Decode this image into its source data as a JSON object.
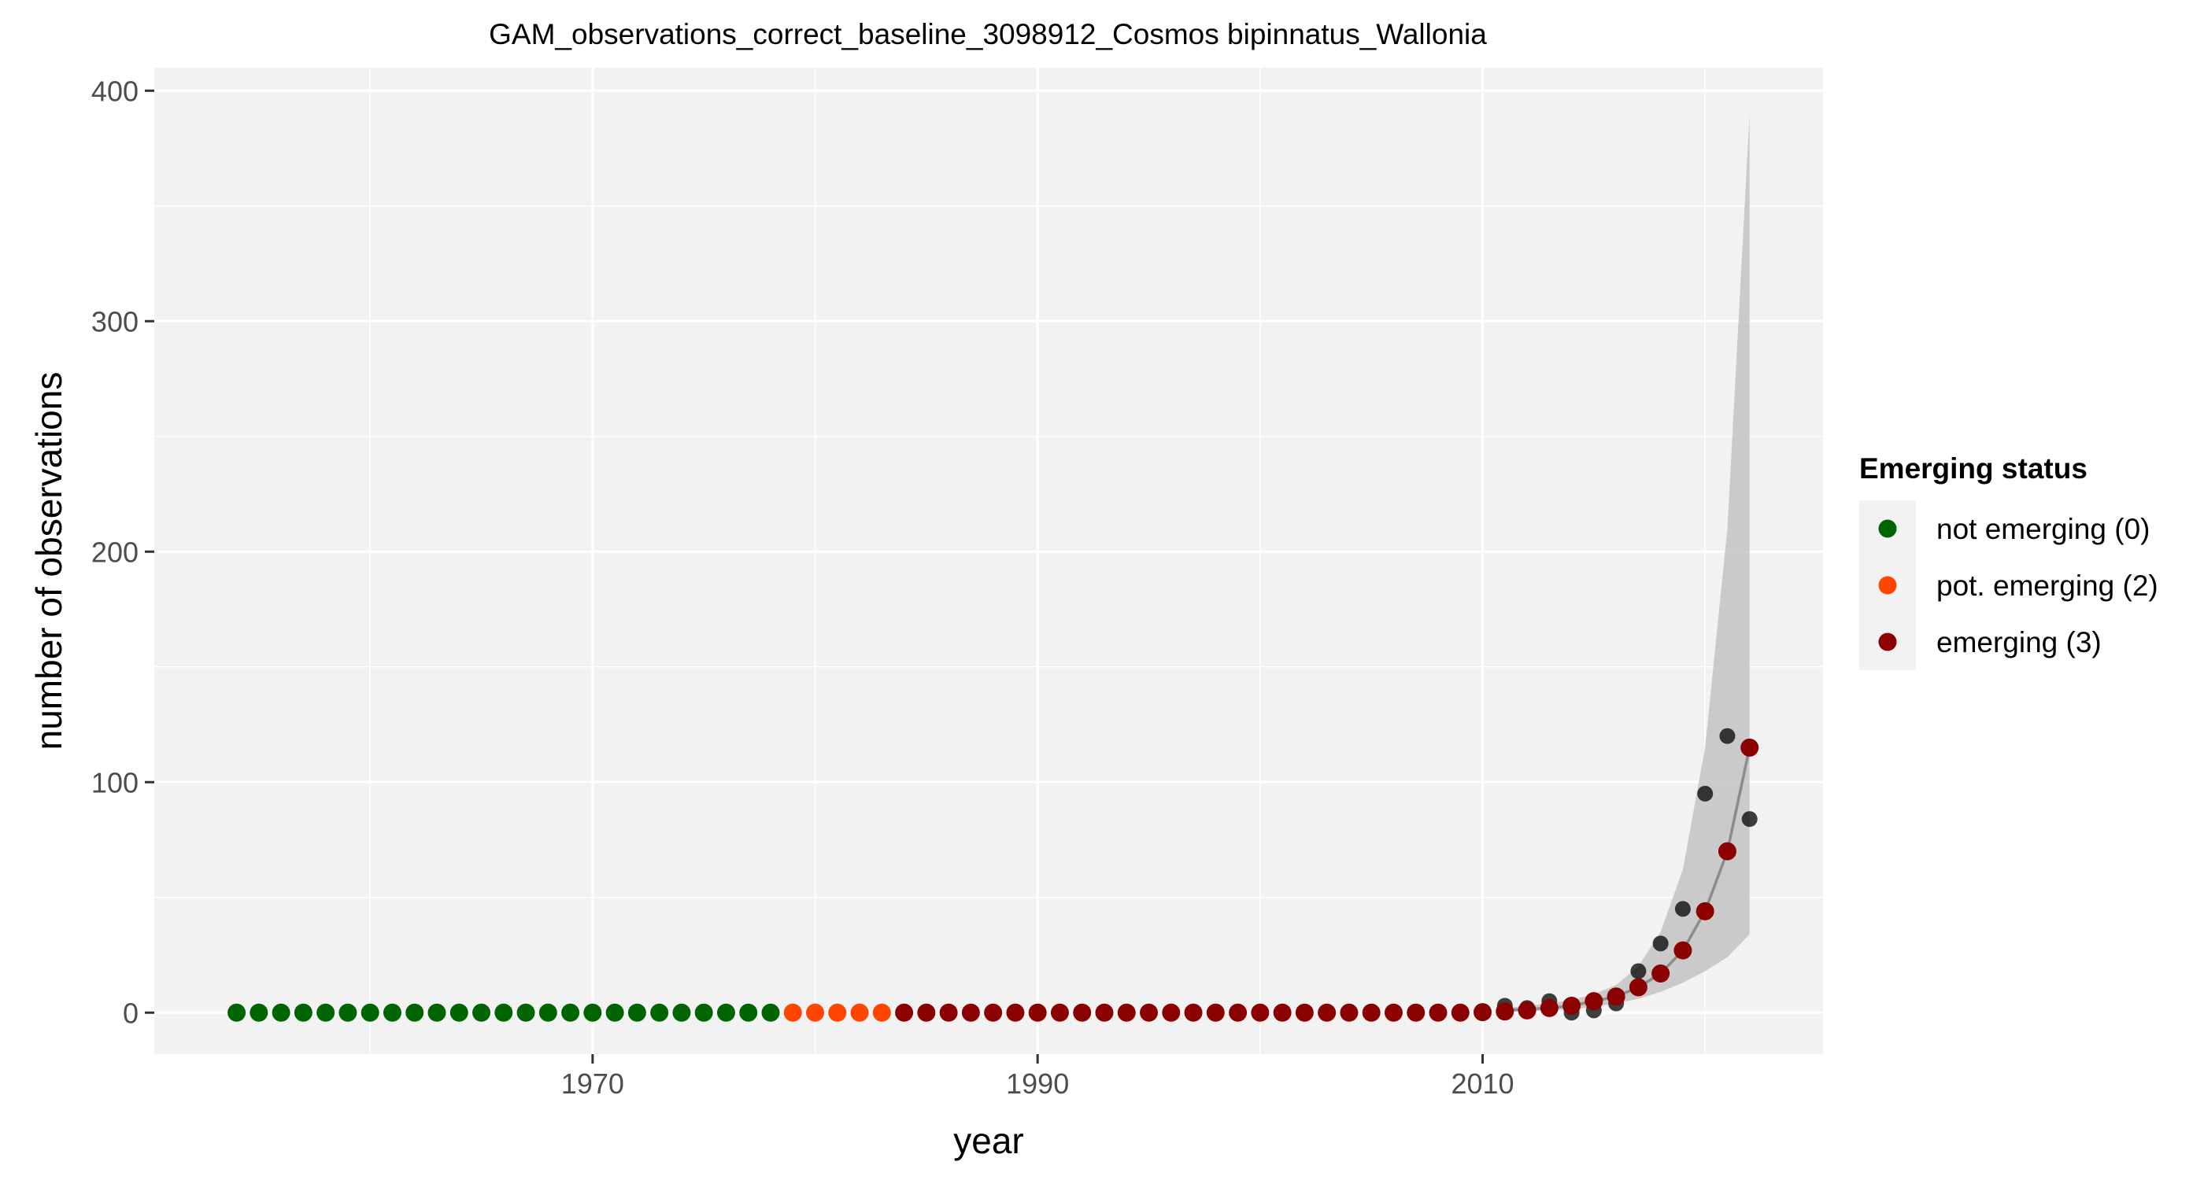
{
  "chart_data": {
    "type": "scatter",
    "title": "GAM_observations_correct_baseline_3098912_Cosmos bipinnatus_Wallonia",
    "xlabel": "year",
    "ylabel": "number of observations",
    "xlim": [
      1950.3,
      2025.3
    ],
    "ylim": [
      -18,
      410
    ],
    "x_ticks": [
      1970,
      1990,
      2010
    ],
    "y_ticks": [
      0,
      100,
      200,
      300,
      400
    ],
    "grid": true,
    "legend": {
      "title": "Emerging status",
      "position": "right",
      "entries": [
        {
          "label": "not emerging (0)",
          "color": "#006400"
        },
        {
          "label": "pot. emerging (2)",
          "color": "#ff4500"
        },
        {
          "label": "emerging (3)",
          "color": "#8b0000"
        }
      ]
    },
    "observations": {
      "color": "#000000",
      "x": [
        2011,
        2012,
        2013,
        2014,
        2015,
        2016,
        2017,
        2018,
        2019,
        2020,
        2021,
        2022
      ],
      "y": [
        3,
        2,
        5,
        0,
        1,
        4,
        18,
        30,
        45,
        95,
        120,
        84
      ]
    },
    "fit": {
      "color": "#8c8c8c",
      "x": [
        2011,
        2012,
        2013,
        2014,
        2015,
        2016,
        2017,
        2018,
        2019,
        2020,
        2021,
        2022
      ],
      "y": [
        1,
        1.5,
        2,
        3,
        5,
        7,
        11,
        17,
        27,
        44,
        70,
        115
      ],
      "lower": [
        0.3,
        0.5,
        1,
        1.5,
        2.5,
        4,
        6,
        9,
        13,
        18,
        24,
        34
      ],
      "upper": [
        2,
        3,
        4,
        5.5,
        8,
        12,
        20,
        35,
        62,
        115,
        210,
        390
      ]
    },
    "series": [
      {
        "name": "not emerging (0)",
        "color": "#006400",
        "x": [
          1954,
          1955,
          1956,
          1957,
          1958,
          1959,
          1960,
          1961,
          1962,
          1963,
          1964,
          1965,
          1966,
          1967,
          1968,
          1969,
          1970,
          1971,
          1972,
          1973,
          1974,
          1975,
          1976,
          1977,
          1978
        ],
        "y": [
          0,
          0,
          0,
          0,
          0,
          0,
          0,
          0,
          0,
          0,
          0,
          0,
          0,
          0,
          0,
          0,
          0,
          0,
          0,
          0,
          0,
          0,
          0,
          0,
          0
        ]
      },
      {
        "name": "pot. emerging (2)",
        "color": "#ff4500",
        "x": [
          1979,
          1980,
          1981,
          1982,
          1983
        ],
        "y": [
          0,
          0,
          0,
          0,
          0
        ]
      },
      {
        "name": "emerging (3)",
        "color": "#8b0000",
        "x": [
          1984,
          1985,
          1986,
          1987,
          1988,
          1989,
          1990,
          1991,
          1992,
          1993,
          1994,
          1995,
          1996,
          1997,
          1998,
          1999,
          2000,
          2001,
          2002,
          2003,
          2004,
          2005,
          2006,
          2007,
          2008,
          2009,
          2010,
          2011,
          2012,
          2013,
          2014,
          2015,
          2016,
          2017,
          2018,
          2019,
          2020,
          2021,
          2022
        ],
        "y": [
          0,
          0,
          0,
          0,
          0,
          0,
          0,
          0,
          0,
          0,
          0,
          0,
          0,
          0,
          0,
          0,
          0,
          0,
          0,
          0,
          0,
          0,
          0,
          0,
          0,
          0,
          0.2,
          0.5,
          1,
          2,
          3,
          5,
          7,
          11,
          17,
          27,
          44,
          70,
          115
        ]
      }
    ]
  }
}
